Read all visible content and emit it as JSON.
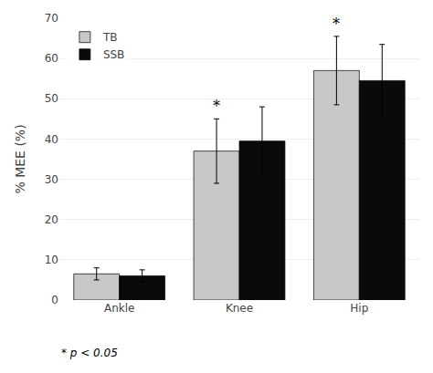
{
  "chart_data": {
    "type": "bar",
    "categories": [
      "Ankle",
      "Knee",
      "Hip"
    ],
    "series": [
      {
        "name": "TB",
        "color": "#c8c8c8",
        "values": [
          6.5,
          37.0,
          57.0
        ],
        "errors": [
          1.5,
          8.0,
          8.5
        ]
      },
      {
        "name": "SSB",
        "color": "#0a0a0a",
        "values": [
          6.0,
          39.5,
          54.5
        ],
        "errors": [
          1.5,
          8.5,
          9.0
        ]
      }
    ],
    "ylabel": "% MEE (%)",
    "ylim": [
      0,
      70
    ],
    "yticks": [
      0,
      10,
      20,
      30,
      40,
      50,
      60,
      70
    ],
    "grid": true,
    "legend": "upper left",
    "annotations": [
      {
        "text": "*",
        "category": "Knee",
        "series": "TB"
      },
      {
        "text": "*",
        "category": "Hip",
        "series": "TB"
      },
      {
        "text": "* p < 0.05"
      }
    ]
  }
}
